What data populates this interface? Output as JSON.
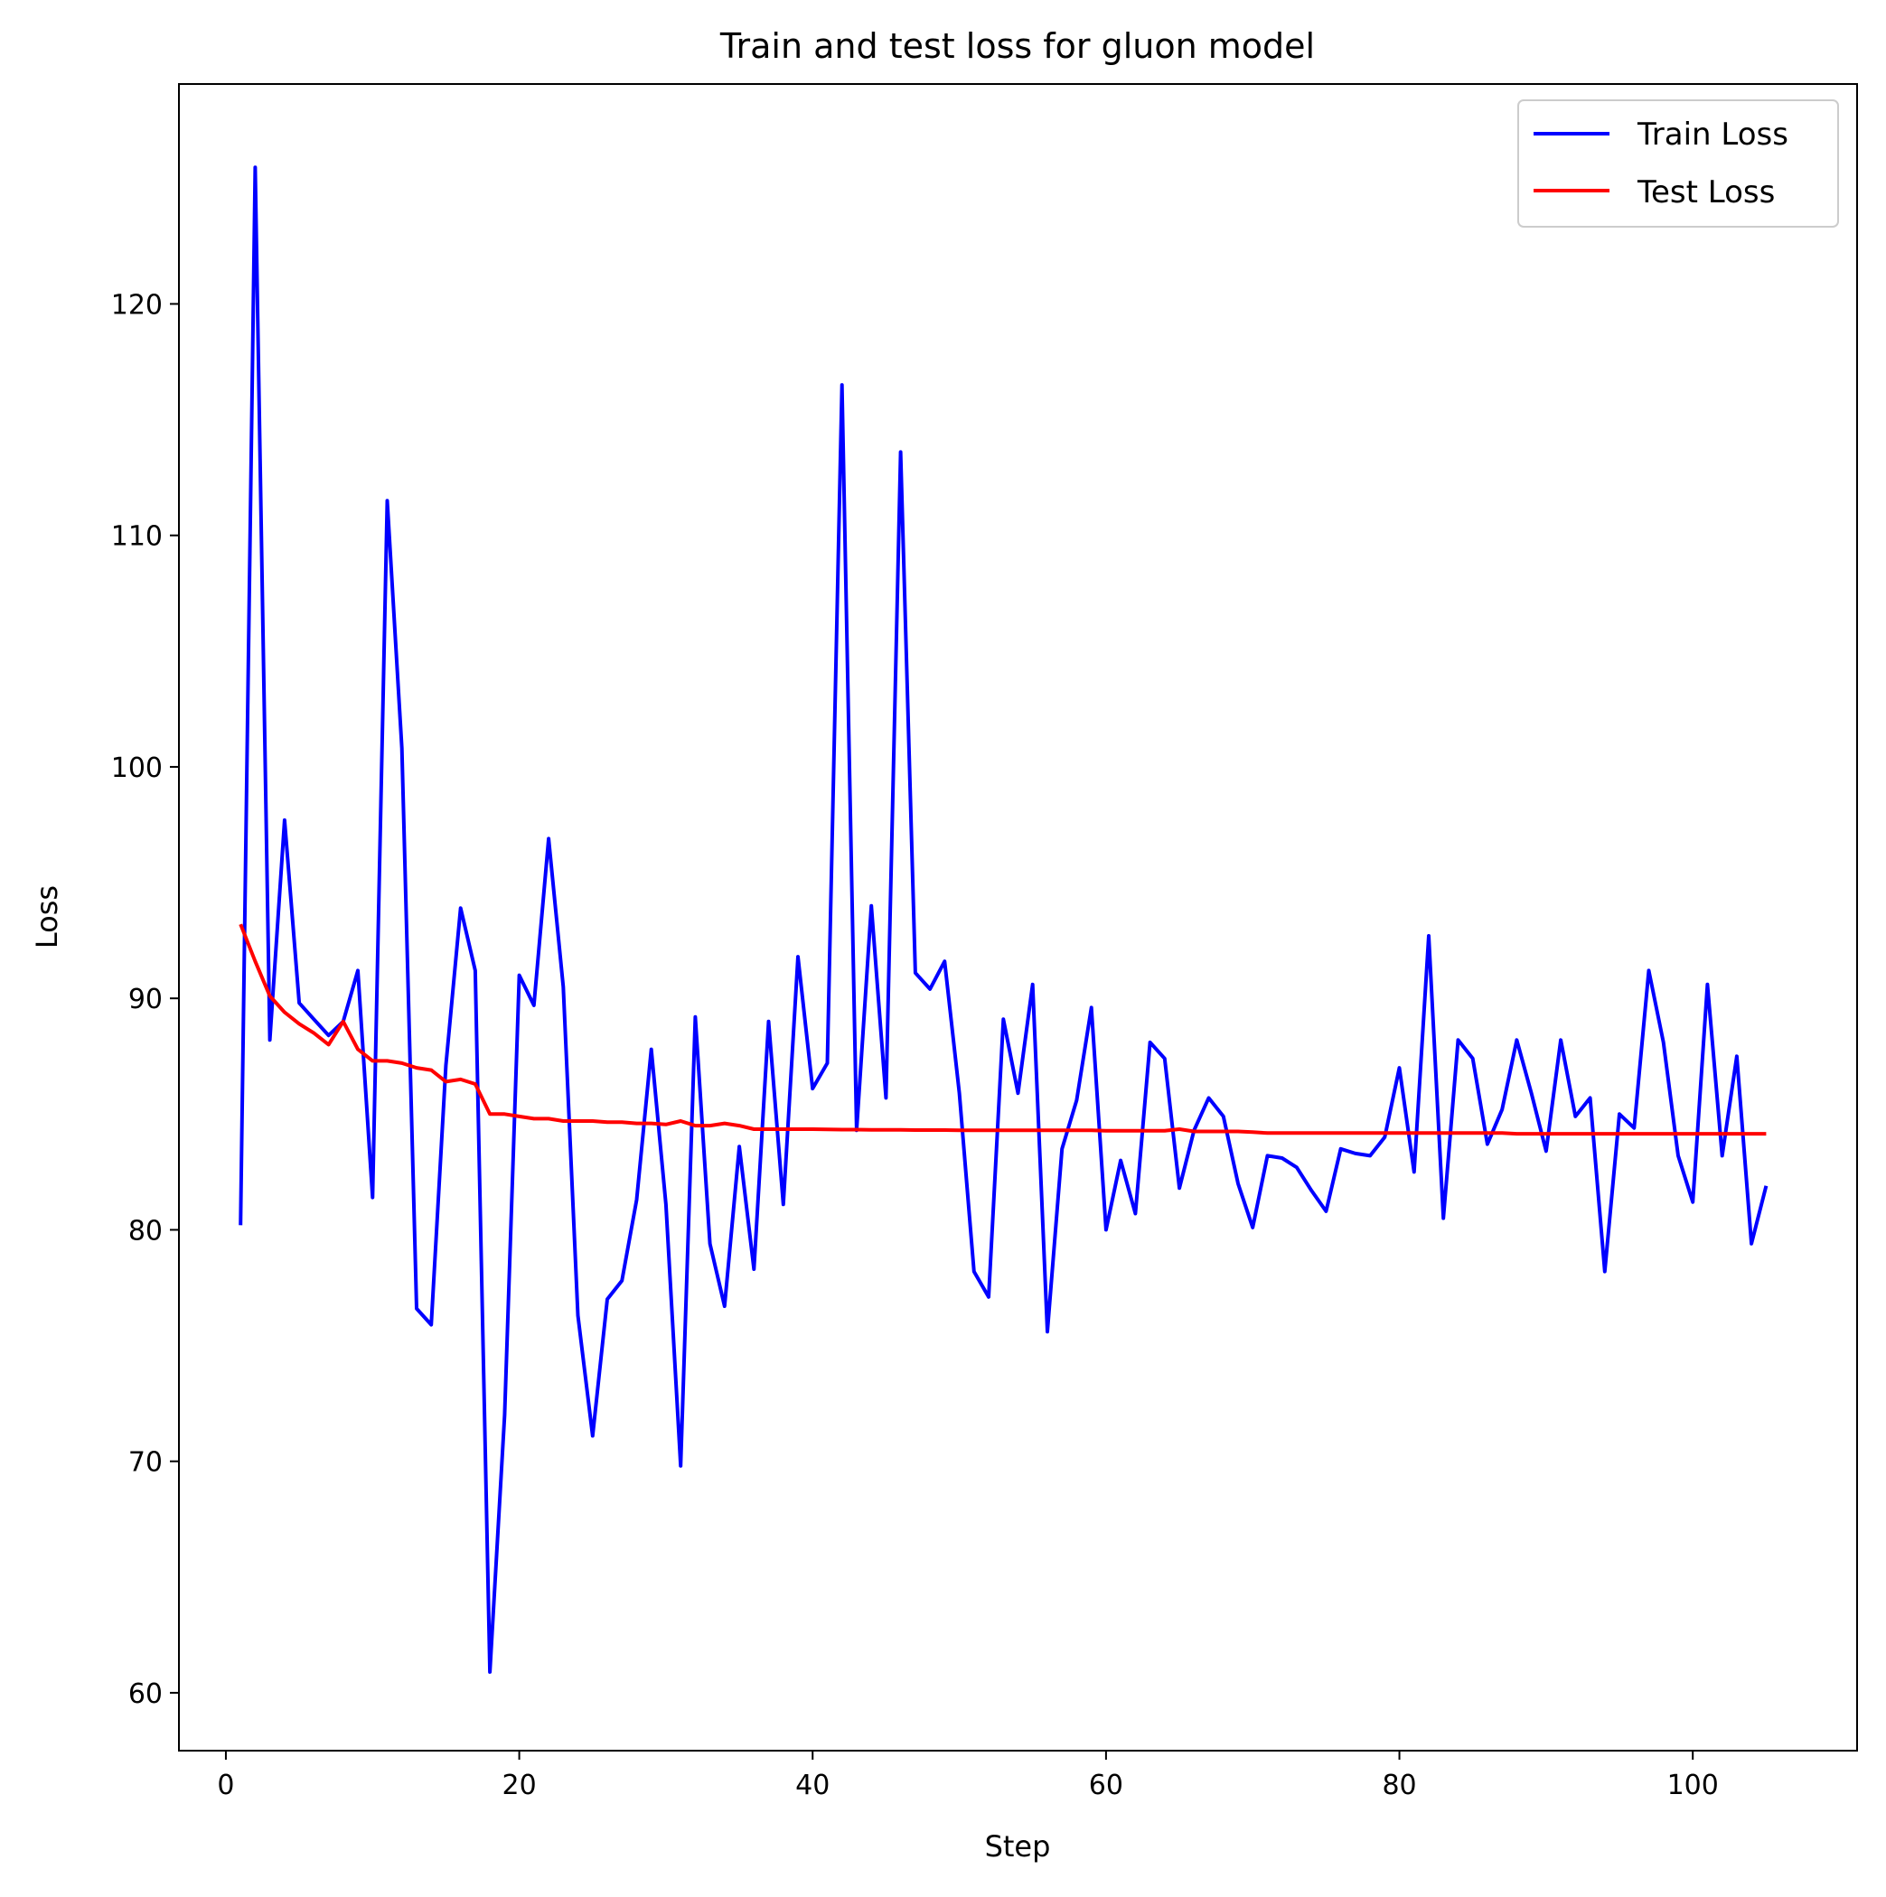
{
  "chart_data": {
    "type": "line",
    "title": "Train and test loss for gluon model",
    "xlabel": "Step",
    "ylabel": "Loss",
    "xlim": [
      -3.2,
      111.2
    ],
    "ylim": [
      57.5,
      129.5
    ],
    "xticks": [
      0,
      20,
      40,
      60,
      80,
      100
    ],
    "yticks": [
      60,
      70,
      80,
      90,
      100,
      110,
      120
    ],
    "grid": false,
    "legend_position": "top-right",
    "series": [
      {
        "name": "Train Loss",
        "color": "#0000ff",
        "x": [
          1,
          2,
          3,
          4,
          5,
          6,
          7,
          8,
          9,
          10,
          11,
          12,
          13,
          14,
          15,
          16,
          17,
          18,
          19,
          20,
          21,
          22,
          23,
          24,
          25,
          26,
          27,
          28,
          29,
          30,
          31,
          32,
          33,
          34,
          35,
          36,
          37,
          38,
          39,
          40,
          41,
          42,
          43,
          44,
          45,
          46,
          47,
          48,
          49,
          50,
          51,
          52,
          53,
          54,
          55,
          56,
          57,
          58,
          59,
          60,
          61,
          62,
          63,
          64,
          65,
          66,
          67,
          68,
          69,
          70,
          71,
          72,
          73,
          74,
          75,
          76,
          77,
          78,
          79,
          80,
          81,
          82,
          83,
          84,
          85,
          86,
          87,
          88,
          89,
          90,
          91,
          92,
          93,
          94,
          95,
          96,
          97,
          98,
          99,
          100,
          101,
          102,
          103,
          104,
          105
        ],
        "values": [
          80.2,
          125.9,
          88.2,
          97.7,
          89.8,
          89.1,
          88.4,
          89.0,
          91.2,
          81.4,
          111.5,
          100.8,
          76.6,
          75.9,
          87.1,
          93.9,
          91.2,
          60.9,
          72.0,
          91.0,
          89.7,
          96.9,
          90.5,
          76.3,
          71.1,
          77.0,
          77.8,
          81.3,
          87.8,
          81.1,
          69.8,
          89.2,
          79.4,
          76.7,
          83.6,
          78.3,
          89.0,
          81.1,
          91.8,
          86.1,
          87.2,
          116.5,
          84.3,
          94.0,
          85.7,
          113.6,
          91.1,
          90.4,
          91.6,
          85.9,
          78.2,
          77.1,
          89.1,
          85.9,
          90.6,
          75.6,
          83.5,
          85.6,
          89.6,
          80.0,
          83.0,
          80.7,
          88.1,
          87.4,
          81.8,
          84.3,
          85.7,
          84.9,
          82.0,
          80.1,
          83.2,
          83.1,
          82.7,
          81.7,
          80.8,
          83.5,
          83.3,
          83.2,
          84.0,
          87.0,
          82.5,
          92.7,
          80.5,
          88.2,
          87.4,
          83.7,
          85.2,
          88.2,
          85.9,
          83.4,
          88.2,
          84.9,
          85.7,
          78.2,
          85.0,
          84.4,
          91.2,
          88.1,
          83.2,
          81.2,
          90.6,
          83.2,
          87.5,
          79.4,
          81.9
        ]
      },
      {
        "name": "Test Loss",
        "color": "#ff0000",
        "x": [
          1,
          2,
          3,
          4,
          5,
          6,
          7,
          8,
          9,
          10,
          11,
          12,
          13,
          14,
          15,
          16,
          17,
          18,
          19,
          20,
          21,
          22,
          23,
          24,
          25,
          26,
          27,
          28,
          29,
          30,
          31,
          32,
          33,
          34,
          35,
          36,
          37,
          38,
          39,
          40,
          41,
          42,
          43,
          44,
          45,
          46,
          47,
          48,
          49,
          50,
          51,
          52,
          53,
          54,
          55,
          56,
          57,
          58,
          59,
          60,
          61,
          62,
          63,
          64,
          65,
          66,
          67,
          68,
          69,
          70,
          71,
          72,
          73,
          74,
          75,
          76,
          77,
          78,
          79,
          80,
          81,
          82,
          83,
          84,
          85,
          86,
          87,
          88,
          89,
          90,
          91,
          92,
          93,
          94,
          95,
          96,
          97,
          98,
          99,
          100,
          101,
          102,
          103,
          104,
          105
        ],
        "values": [
          93.2,
          91.6,
          90.1,
          89.4,
          88.9,
          88.5,
          88.0,
          89.0,
          87.8,
          87.3,
          87.3,
          87.2,
          87.0,
          86.9,
          86.4,
          86.5,
          86.3,
          85.0,
          85.0,
          84.9,
          84.8,
          84.8,
          84.7,
          84.7,
          84.7,
          84.65,
          84.65,
          84.6,
          84.6,
          84.55,
          84.7,
          84.5,
          84.5,
          84.6,
          84.5,
          84.35,
          84.35,
          84.35,
          84.35,
          84.35,
          84.34,
          84.33,
          84.33,
          84.32,
          84.32,
          84.32,
          84.31,
          84.31,
          84.31,
          84.3,
          84.3,
          84.3,
          84.3,
          84.3,
          84.3,
          84.3,
          84.3,
          84.3,
          84.3,
          84.28,
          84.28,
          84.28,
          84.28,
          84.28,
          84.35,
          84.25,
          84.25,
          84.25,
          84.25,
          84.22,
          84.18,
          84.18,
          84.18,
          84.18,
          84.18,
          84.18,
          84.18,
          84.18,
          84.18,
          84.18,
          84.18,
          84.18,
          84.18,
          84.18,
          84.18,
          84.18,
          84.18,
          84.15,
          84.15,
          84.15,
          84.15,
          84.15,
          84.15,
          84.15,
          84.15,
          84.15,
          84.15,
          84.15,
          84.15,
          84.15,
          84.15,
          84.15,
          84.15,
          84.15,
          84.15
        ]
      }
    ]
  }
}
